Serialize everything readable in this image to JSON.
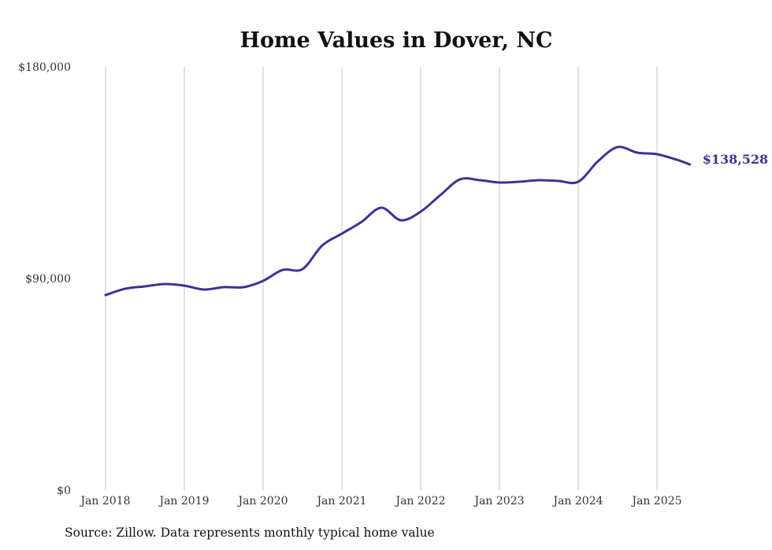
{
  "chart_data": {
    "type": "line",
    "title": "Home Values in Dover, NC",
    "xlabel": "",
    "ylabel": "",
    "ylim": [
      0,
      180000
    ],
    "y_ticks": [
      "$0",
      "$90,000",
      "$180,000"
    ],
    "y_tick_values": [
      0,
      90000,
      180000
    ],
    "x_ticks": [
      "Jan 2018",
      "Jan 2019",
      "Jan 2020",
      "Jan 2021",
      "Jan 2022",
      "Jan 2023",
      "Jan 2024",
      "Jan 2025"
    ],
    "x_tick_values": [
      2018,
      2019,
      2020,
      2021,
      2022,
      2023,
      2024,
      2025
    ],
    "xlim": [
      2018,
      2025.5
    ],
    "grid": "vertical",
    "series": [
      {
        "name": "Typical home value",
        "color": "#3a3595",
        "x": [
          2018,
          2018.25,
          2018.5,
          2018.75,
          2019,
          2019.25,
          2019.5,
          2019.75,
          2020,
          2020.25,
          2020.5,
          2020.75,
          2021,
          2021.25,
          2021.5,
          2021.75,
          2022,
          2022.25,
          2022.5,
          2022.75,
          2023,
          2023.25,
          2023.5,
          2023.75,
          2024,
          2024.25,
          2024.5,
          2024.75,
          2025,
          2025.25,
          2025.417
        ],
        "values": [
          82980,
          85660,
          86660,
          87670,
          87000,
          85320,
          86330,
          86330,
          89000,
          93690,
          94020,
          104060,
          109080,
          114100,
          120120,
          114770,
          118450,
          125480,
          132170,
          131830,
          130830,
          131160,
          131830,
          131500,
          131160,
          139860,
          145890,
          143540,
          142870,
          140530,
          138528
        ]
      }
    ],
    "end_label": "$138,528"
  },
  "source": "Source: Zillow. Data represents monthly typical home value"
}
